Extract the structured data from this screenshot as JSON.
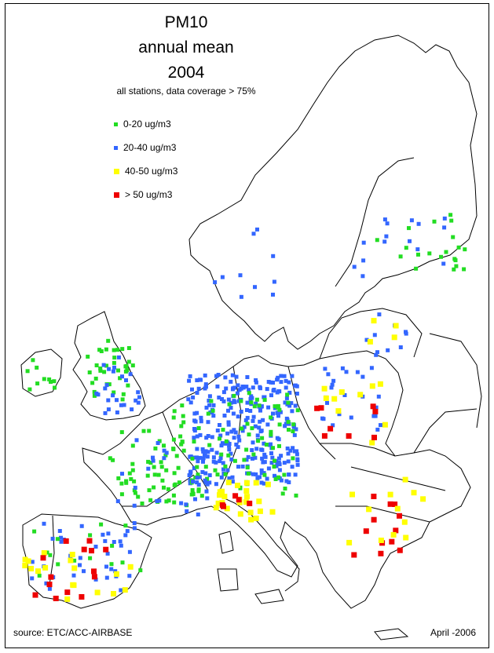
{
  "title": {
    "line1": "PM10",
    "line2": "annual mean",
    "line3": "2004",
    "subtitle": "all stations, data coverage > 75%"
  },
  "legend": [
    {
      "label": "0-20 ug/m3",
      "color": "#22dd22",
      "size": "small"
    },
    {
      "label": "20-40 ug/m3",
      "color": "#3366ff",
      "size": "small"
    },
    {
      "label": "40-50 ug/m3",
      "color": "#ffff00",
      "size": "medium"
    },
    {
      "label": "> 50 ug/m3",
      "color": "#ee0000",
      "size": "large"
    }
  ],
  "footer": {
    "source": "source: ETC/ACC-AIRBASE",
    "date": "April -2006"
  },
  "colors": {
    "land_outline": "#000000",
    "background": "#ffffff"
  }
}
